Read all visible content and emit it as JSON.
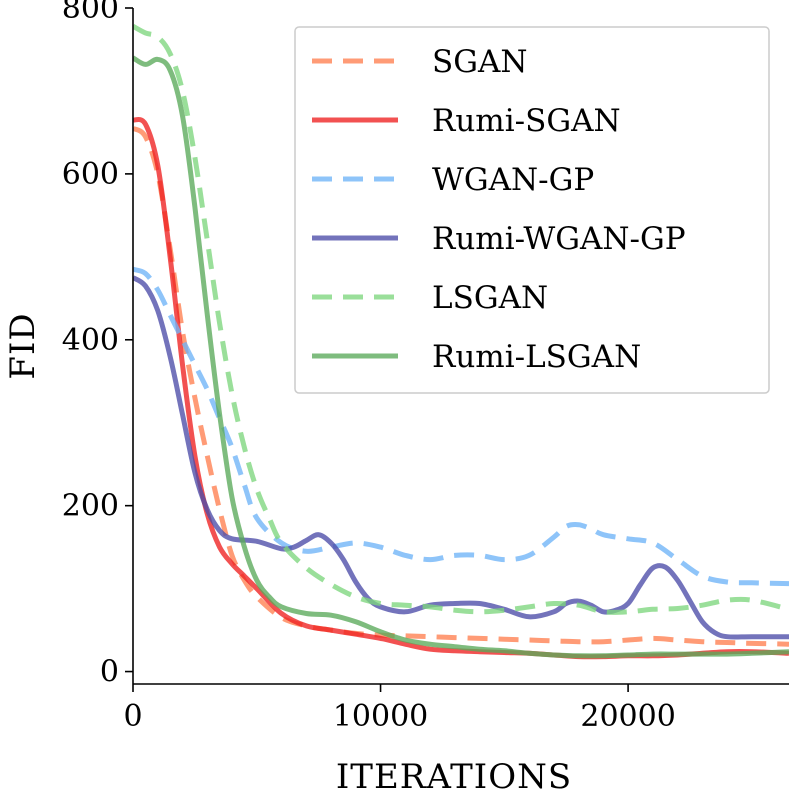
{
  "chart_data": {
    "type": "line",
    "title": "",
    "xlabel": "ITERATIONS",
    "ylabel": "FID",
    "xlim": [
      0,
      26500
    ],
    "ylim": [
      -15,
      800
    ],
    "xticks": [
      0,
      10000,
      20000
    ],
    "xtick_labels": [
      "0",
      "10000",
      "20000"
    ],
    "yticks": [
      0,
      200,
      400,
      600,
      800
    ],
    "ytick_labels": [
      "0",
      "200",
      "400",
      "600",
      "800"
    ],
    "grid": false,
    "legend_position": "top-right",
    "series": [
      {
        "name": "SGAN",
        "color": "#ff7f50",
        "style": "dashed",
        "x": [
          0,
          500,
          1000,
          1500,
          2000,
          2500,
          3000,
          3500,
          4000,
          4500,
          5000,
          6000,
          7000,
          8000,
          9000,
          10000,
          11000,
          12000,
          13000,
          14000,
          15000,
          16000,
          17000,
          18000,
          19000,
          20000,
          21000,
          22000,
          23000,
          24000,
          25000,
          26500
        ],
        "y": [
          655,
          645,
          600,
          510,
          410,
          330,
          260,
          195,
          140,
          110,
          90,
          65,
          55,
          50,
          46,
          44,
          43,
          42,
          41,
          40,
          39,
          38,
          37,
          36,
          36,
          38,
          40,
          38,
          36,
          35,
          34,
          33
        ]
      },
      {
        "name": "Rumi-SGAN",
        "color": "#ee2020",
        "style": "solid",
        "x": [
          0,
          500,
          1000,
          1500,
          2000,
          2500,
          3000,
          3500,
          4000,
          4500,
          5000,
          6000,
          7000,
          8000,
          9000,
          10000,
          11000,
          12000,
          13000,
          14000,
          15000,
          16000,
          17000,
          18000,
          19000,
          20000,
          21000,
          22000,
          23000,
          24000,
          25000,
          26500
        ],
        "y": [
          665,
          660,
          610,
          500,
          370,
          260,
          190,
          150,
          130,
          115,
          100,
          70,
          55,
          50,
          45,
          40,
          33,
          27,
          25,
          24,
          23,
          22,
          20,
          18,
          18,
          19,
          19,
          20,
          22,
          24,
          24,
          22
        ]
      },
      {
        "name": "WGAN-GP",
        "color": "#6eb4f7",
        "style": "dashed",
        "x": [
          0,
          500,
          1000,
          1500,
          2000,
          2500,
          3000,
          3500,
          4000,
          4500,
          5000,
          6000,
          7000,
          8000,
          9000,
          10000,
          11000,
          12000,
          13000,
          14000,
          15000,
          16000,
          17000,
          17500,
          18000,
          18500,
          19000,
          20000,
          21000,
          22000,
          23000,
          24000,
          25000,
          26500
        ],
        "y": [
          485,
          480,
          460,
          430,
          400,
          370,
          340,
          305,
          270,
          225,
          185,
          155,
          145,
          150,
          155,
          150,
          140,
          135,
          140,
          140,
          135,
          140,
          162,
          175,
          177,
          172,
          165,
          160,
          155,
          135,
          115,
          108,
          107,
          106
        ]
      },
      {
        "name": "Rumi-WGAN-GP",
        "color": "#4b4ba8",
        "style": "solid",
        "x": [
          0,
          500,
          1000,
          1500,
          2000,
          2500,
          3000,
          3500,
          4000,
          5000,
          6000,
          6500,
          7000,
          7500,
          8000,
          8500,
          9000,
          9500,
          10000,
          11000,
          12000,
          13000,
          14000,
          15000,
          16000,
          17000,
          17500,
          18000,
          18500,
          19000,
          19500,
          20000,
          20500,
          21000,
          21500,
          22000,
          22500,
          23000,
          23500,
          24000,
          25000,
          26500
        ],
        "y": [
          475,
          465,
          435,
          380,
          310,
          240,
          195,
          170,
          160,
          157,
          148,
          150,
          158,
          165,
          155,
          135,
          108,
          88,
          78,
          72,
          80,
          82,
          82,
          75,
          66,
          72,
          82,
          85,
          80,
          72,
          74,
          82,
          105,
          125,
          126,
          110,
          85,
          60,
          47,
          42,
          42,
          42
        ]
      },
      {
        "name": "LSGAN",
        "color": "#7ed67e",
        "style": "dashed",
        "x": [
          0,
          500,
          1000,
          1500,
          2000,
          2500,
          3000,
          3500,
          4000,
          4500,
          5000,
          5500,
          6000,
          7000,
          8000,
          9000,
          10000,
          11000,
          12000,
          13000,
          14000,
          15000,
          16000,
          17000,
          18000,
          19000,
          20000,
          21000,
          22000,
          23000,
          24000,
          25000,
          26500
        ],
        "y": [
          778,
          770,
          765,
          745,
          700,
          620,
          520,
          420,
          335,
          270,
          220,
          185,
          155,
          125,
          105,
          90,
          82,
          80,
          78,
          74,
          72,
          74,
          78,
          82,
          80,
          72,
          72,
          75,
          76,
          80,
          86,
          86,
          75
        ]
      },
      {
        "name": "Rumi-LSGAN",
        "color": "#5aa95a",
        "style": "solid",
        "x": [
          0,
          500,
          1000,
          1500,
          2000,
          2500,
          3000,
          3500,
          4000,
          4500,
          5000,
          5500,
          6000,
          7000,
          8000,
          9000,
          10000,
          11000,
          12000,
          13000,
          14000,
          15000,
          16000,
          17000,
          18000,
          19000,
          20000,
          21000,
          22000,
          23000,
          24000,
          25000,
          26500
        ],
        "y": [
          740,
          732,
          738,
          725,
          670,
          560,
          430,
          310,
          210,
          150,
          110,
          90,
          78,
          70,
          68,
          60,
          48,
          38,
          33,
          30,
          27,
          25,
          22,
          20,
          19,
          19,
          20,
          21,
          21,
          21,
          21,
          22,
          24
        ]
      }
    ]
  }
}
